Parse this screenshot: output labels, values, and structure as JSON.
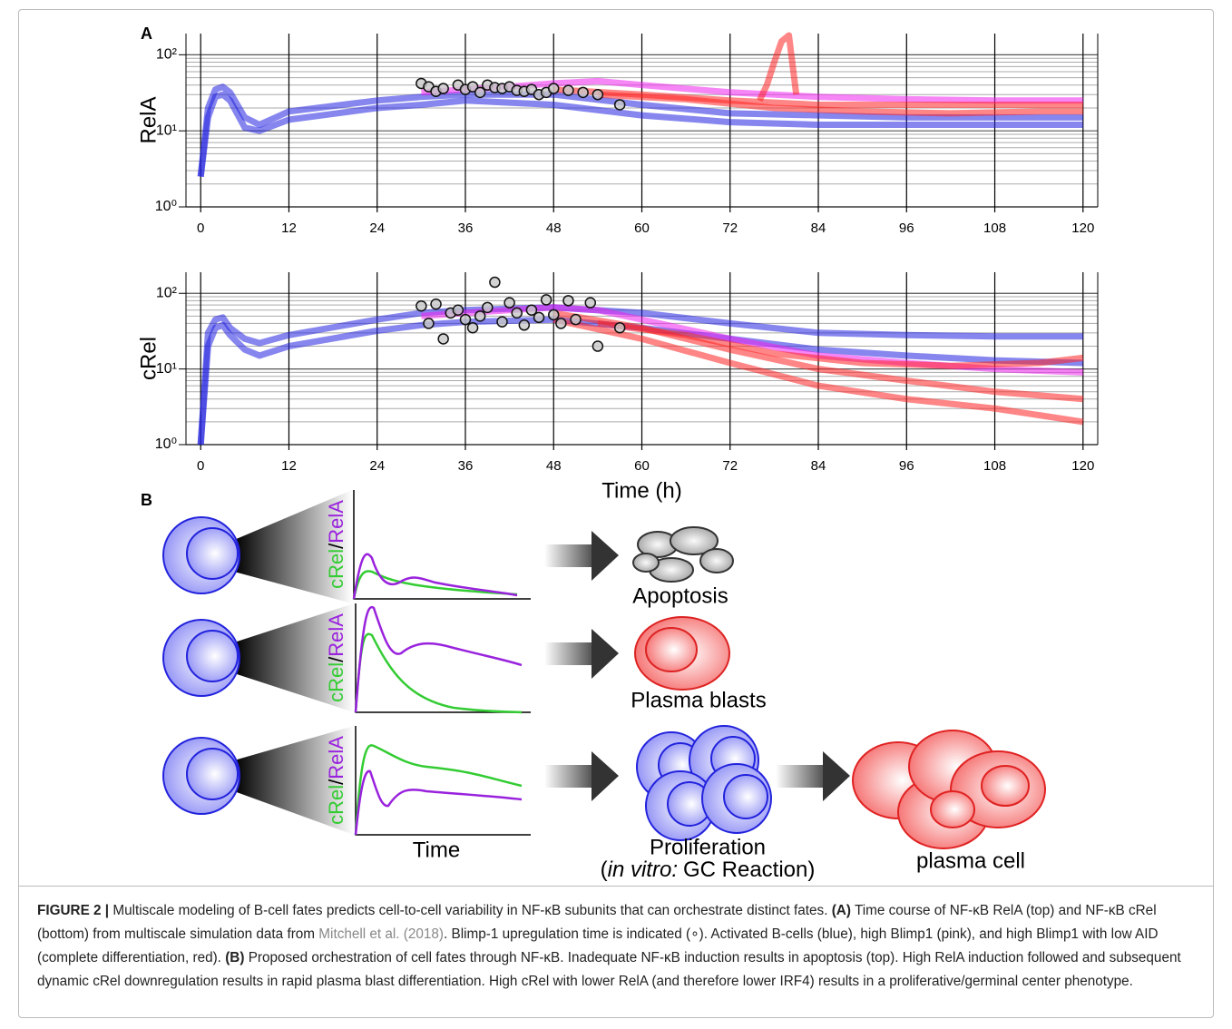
{
  "panel_labels": {
    "a": "A",
    "b": "B"
  },
  "chart_data": [
    {
      "type": "line",
      "y_label": "RelA",
      "log_y": true,
      "xlim": [
        -2,
        122
      ],
      "xticks": [
        0,
        12,
        24,
        36,
        48,
        60,
        72,
        84,
        96,
        108,
        120
      ],
      "ylim": [
        1,
        190
      ],
      "yticks": [
        {
          "value": 1,
          "label": "10⁰"
        },
        {
          "value": 10,
          "label": "10¹"
        },
        {
          "value": 100,
          "label": "10²"
        }
      ],
      "yminor": [
        2,
        3,
        4,
        5,
        6,
        7,
        8,
        9,
        20,
        30,
        40,
        50,
        60,
        70,
        80,
        90
      ],
      "grid": true,
      "series": [
        {
          "color": "#2323e0",
          "x": [
            0,
            1,
            2,
            3,
            4,
            6,
            8,
            12,
            24,
            30,
            36,
            48,
            60,
            72,
            84,
            96,
            108,
            120
          ],
          "values": [
            2.5,
            20,
            35,
            38,
            32,
            15,
            12,
            18,
            25,
            28,
            30,
            30,
            22,
            17,
            16,
            15,
            15,
            15
          ]
        },
        {
          "color": "#2323e0",
          "x": [
            0,
            1,
            2,
            3,
            4,
            6,
            8,
            12,
            24,
            30,
            36,
            48,
            60,
            72,
            84,
            96,
            108,
            120
          ],
          "values": [
            2.5,
            15,
            28,
            30,
            25,
            11,
            10,
            14,
            20,
            22,
            25,
            22,
            16,
            13,
            12,
            12,
            12,
            12
          ]
        },
        {
          "color": "#ee22ee",
          "x": [
            30,
            36,
            42,
            48,
            54,
            60,
            72,
            84,
            96,
            108,
            120
          ],
          "values": [
            32,
            35,
            38,
            42,
            45,
            40,
            32,
            28,
            26,
            25,
            25
          ]
        },
        {
          "color": "#ff2222",
          "x": [
            48,
            60,
            72,
            84,
            96,
            108,
            120
          ],
          "values": [
            35,
            30,
            25,
            22,
            22,
            22,
            22
          ]
        },
        {
          "color": "#ff2222",
          "x": [
            54,
            66,
            78,
            90,
            102,
            114,
            120
          ],
          "values": [
            30,
            26,
            20,
            18,
            17,
            18,
            18
          ]
        },
        {
          "color": "#ff2222",
          "x": [
            76,
            77,
            78,
            79,
            80,
            81
          ],
          "values": [
            25,
            40,
            80,
            150,
            180,
            30
          ]
        }
      ],
      "markers": {
        "x": [
          30,
          31,
          32,
          33,
          35,
          36,
          37,
          38,
          39,
          40,
          41,
          42,
          43,
          44,
          45,
          46,
          47,
          48,
          50,
          52,
          54,
          57
        ],
        "values": [
          42,
          38,
          33,
          36,
          40,
          35,
          38,
          32,
          40,
          37,
          36,
          38,
          34,
          33,
          35,
          30,
          32,
          36,
          34,
          32,
          30,
          22
        ]
      }
    },
    {
      "type": "line",
      "y_label": "cRel",
      "x_label": "Time (h)",
      "log_y": true,
      "xlim": [
        -2,
        122
      ],
      "xticks": [
        0,
        12,
        24,
        36,
        48,
        60,
        72,
        84,
        96,
        108,
        120
      ],
      "ylim": [
        1,
        190
      ],
      "yticks": [
        {
          "value": 1,
          "label": "10⁰"
        },
        {
          "value": 10,
          "label": "10¹"
        },
        {
          "value": 100,
          "label": "10²"
        }
      ],
      "yminor": [
        2,
        3,
        4,
        5,
        6,
        7,
        8,
        9,
        20,
        30,
        40,
        50,
        60,
        70,
        80,
        90
      ],
      "grid": true,
      "series": [
        {
          "color": "#2323e0",
          "x": [
            0,
            1,
            2,
            3,
            4,
            6,
            8,
            12,
            24,
            30,
            36,
            48,
            60,
            72,
            84,
            96,
            108,
            120
          ],
          "values": [
            1,
            30,
            45,
            48,
            35,
            25,
            22,
            28,
            45,
            55,
            60,
            65,
            55,
            40,
            30,
            28,
            27,
            27
          ]
        },
        {
          "color": "#2323e0",
          "x": [
            0,
            1,
            2,
            3,
            4,
            6,
            8,
            12,
            24,
            30,
            36,
            48,
            60,
            72,
            84,
            96,
            108,
            120
          ],
          "values": [
            1,
            20,
            35,
            38,
            28,
            18,
            15,
            20,
            32,
            38,
            42,
            45,
            35,
            25,
            18,
            15,
            13,
            12
          ]
        },
        {
          "color": "#ee22ee",
          "x": [
            30,
            36,
            42,
            48,
            54,
            60,
            72,
            84,
            96,
            108,
            120
          ],
          "values": [
            50,
            55,
            60,
            65,
            60,
            45,
            25,
            15,
            12,
            10,
            9
          ]
        },
        {
          "color": "#ff2222",
          "x": [
            48,
            60,
            72,
            84,
            96,
            108,
            120
          ],
          "values": [
            55,
            35,
            18,
            10,
            7,
            5,
            4
          ]
        },
        {
          "color": "#ff2222",
          "x": [
            48,
            60,
            72,
            84,
            96,
            108,
            120
          ],
          "values": [
            45,
            25,
            12,
            6,
            4,
            3,
            2
          ]
        },
        {
          "color": "#ff2222",
          "x": [
            54,
            66,
            78,
            90,
            102,
            114,
            120
          ],
          "values": [
            40,
            28,
            16,
            12,
            11,
            12,
            14
          ]
        }
      ],
      "markers": {
        "x": [
          30,
          31,
          32,
          33,
          34,
          35,
          36,
          37,
          38,
          39,
          40,
          41,
          42,
          43,
          44,
          45,
          46,
          47,
          48,
          49,
          50,
          51,
          53,
          54,
          57
        ],
        "values": [
          68,
          40,
          72,
          25,
          55,
          60,
          45,
          35,
          50,
          65,
          140,
          42,
          75,
          55,
          38,
          60,
          48,
          82,
          52,
          40,
          80,
          45,
          75,
          20,
          35
        ]
      }
    }
  ],
  "diagram": {
    "axis_label": {
      "c_rel": "cRel",
      "slash": "/",
      "rel_a": "RelA"
    },
    "time_label": "Time",
    "fates": {
      "apoptosis": "Apoptosis",
      "plasma_blasts": "Plasma blasts",
      "proliferation": "Proliferation",
      "proliferation_open": "(",
      "proliferation_italic": "in vitro:",
      "proliferation_rest": "GC Reaction)",
      "plasma_cell": "plasma cell"
    }
  },
  "caption": {
    "label": "FIGURE 2 |",
    "intro": "Multiscale modeling of B-cell fates predicts cell-to-cell variability in NF-κB subunits that can orchestrate distinct fates.",
    "a_label": "(A)",
    "a_text": "Time course of NF-κB RelA (top) and NF-κB cRel (bottom) from multiscale simulation data from",
    "link": "Mitchell et al. (2018)",
    "a_text2": ". Blimp-1 upregulation time is indicated (∘). Activated B-cells (blue), high Blimp1 (pink), and high Blimp1 with low AID (complete differentiation, red).",
    "b_label": "(B)",
    "b_text": "Proposed orchestration of cell fates through NF-κB. Inadequate NF-κB induction results in apoptosis (top). High RelA induction followed and subsequent dynamic cRel downregulation results in rapid plasma blast differentiation. High cRel with lower RelA (and therefore lower IRF4) results in a proliferative/germinal center phenotype."
  }
}
